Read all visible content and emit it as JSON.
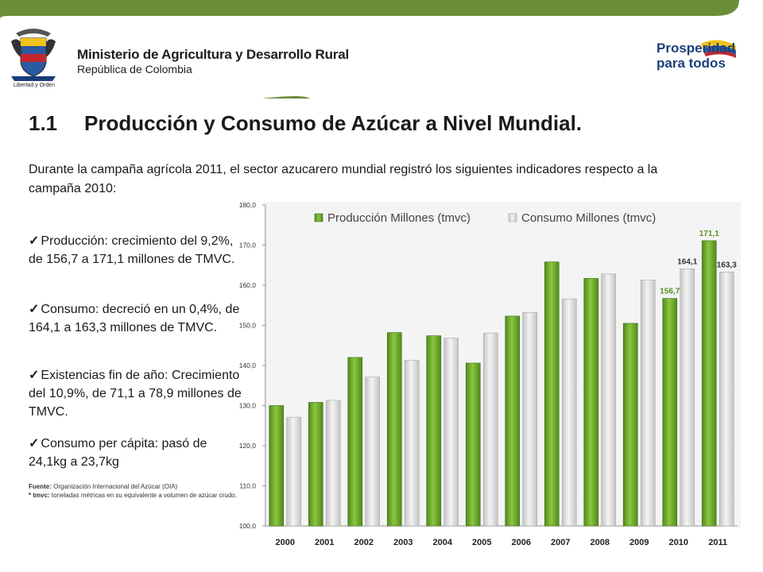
{
  "header": {
    "ministry": "Ministerio de Agricultura y Desarrollo Rural",
    "republic": "República de Colombia",
    "crest_caption": "Libertad y Orden",
    "logo_line1": "Prosperidad",
    "logo_line2": "para todos"
  },
  "title": {
    "number": "1.1",
    "text": "Producción y Consumo de Azúcar a Nivel Mundial."
  },
  "intro": "Durante la campaña agrícola 2011, el sector azucarero mundial registró los siguientes indicadores respecto a la campaña 2010:",
  "bullets": [
    "Producción: crecimiento del 9,2%, de 156,7 a 171,1 millones de TMVC.",
    "Consumo: decreció en un 0,4%, de 164,1 a 163,3 millones de TMVC.",
    "Existencias fin de año: Crecimiento del 10,9%, de 71,1 a 78,9 millones de TMVC.",
    "Consumo per cápita: pasó de 24,1kg a 23,7kg"
  ],
  "source": {
    "label1": "Fuente:",
    "text1": "Organización Internacional del Azúcar (OIA)",
    "label2": "* tmvc:",
    "text2": "toneladas métricas en su equivalente a volumen de azúcar crudo."
  },
  "colors": {
    "production": "#6aa52a",
    "consumption": "#d6d6d6",
    "header": "#6b8e3a"
  },
  "chart_data": {
    "type": "bar",
    "categories": [
      "2000",
      "2001",
      "2002",
      "2003",
      "2004",
      "2005",
      "2006",
      "2007",
      "2008",
      "2009",
      "2010",
      "2011"
    ],
    "series": [
      {
        "name": "Producción Millones (tmvc)",
        "values": [
          130.0,
          130.8,
          142.0,
          148.2,
          147.4,
          140.6,
          152.3,
          165.8,
          161.7,
          150.5,
          156.7,
          171.1
        ]
      },
      {
        "name": "Consumo Millones (tmvc)",
        "values": [
          127.1,
          131.3,
          137.1,
          141.3,
          146.8,
          148.1,
          153.2,
          156.6,
          162.8,
          161.3,
          164.1,
          163.3
        ]
      }
    ],
    "data_labels": [
      {
        "series": 0,
        "index": 10,
        "text": "156,7"
      },
      {
        "series": 1,
        "index": 10,
        "text": "164,1"
      },
      {
        "series": 0,
        "index": 11,
        "text": "171,1"
      },
      {
        "series": 1,
        "index": 11,
        "text": "163,3"
      }
    ],
    "ylim": [
      100,
      180
    ],
    "yticks": [
      "100,0",
      "110,0",
      "120,0",
      "130,0",
      "140,0",
      "150,0",
      "160,0",
      "170,0",
      "180,0"
    ],
    "legend_position": "top"
  }
}
